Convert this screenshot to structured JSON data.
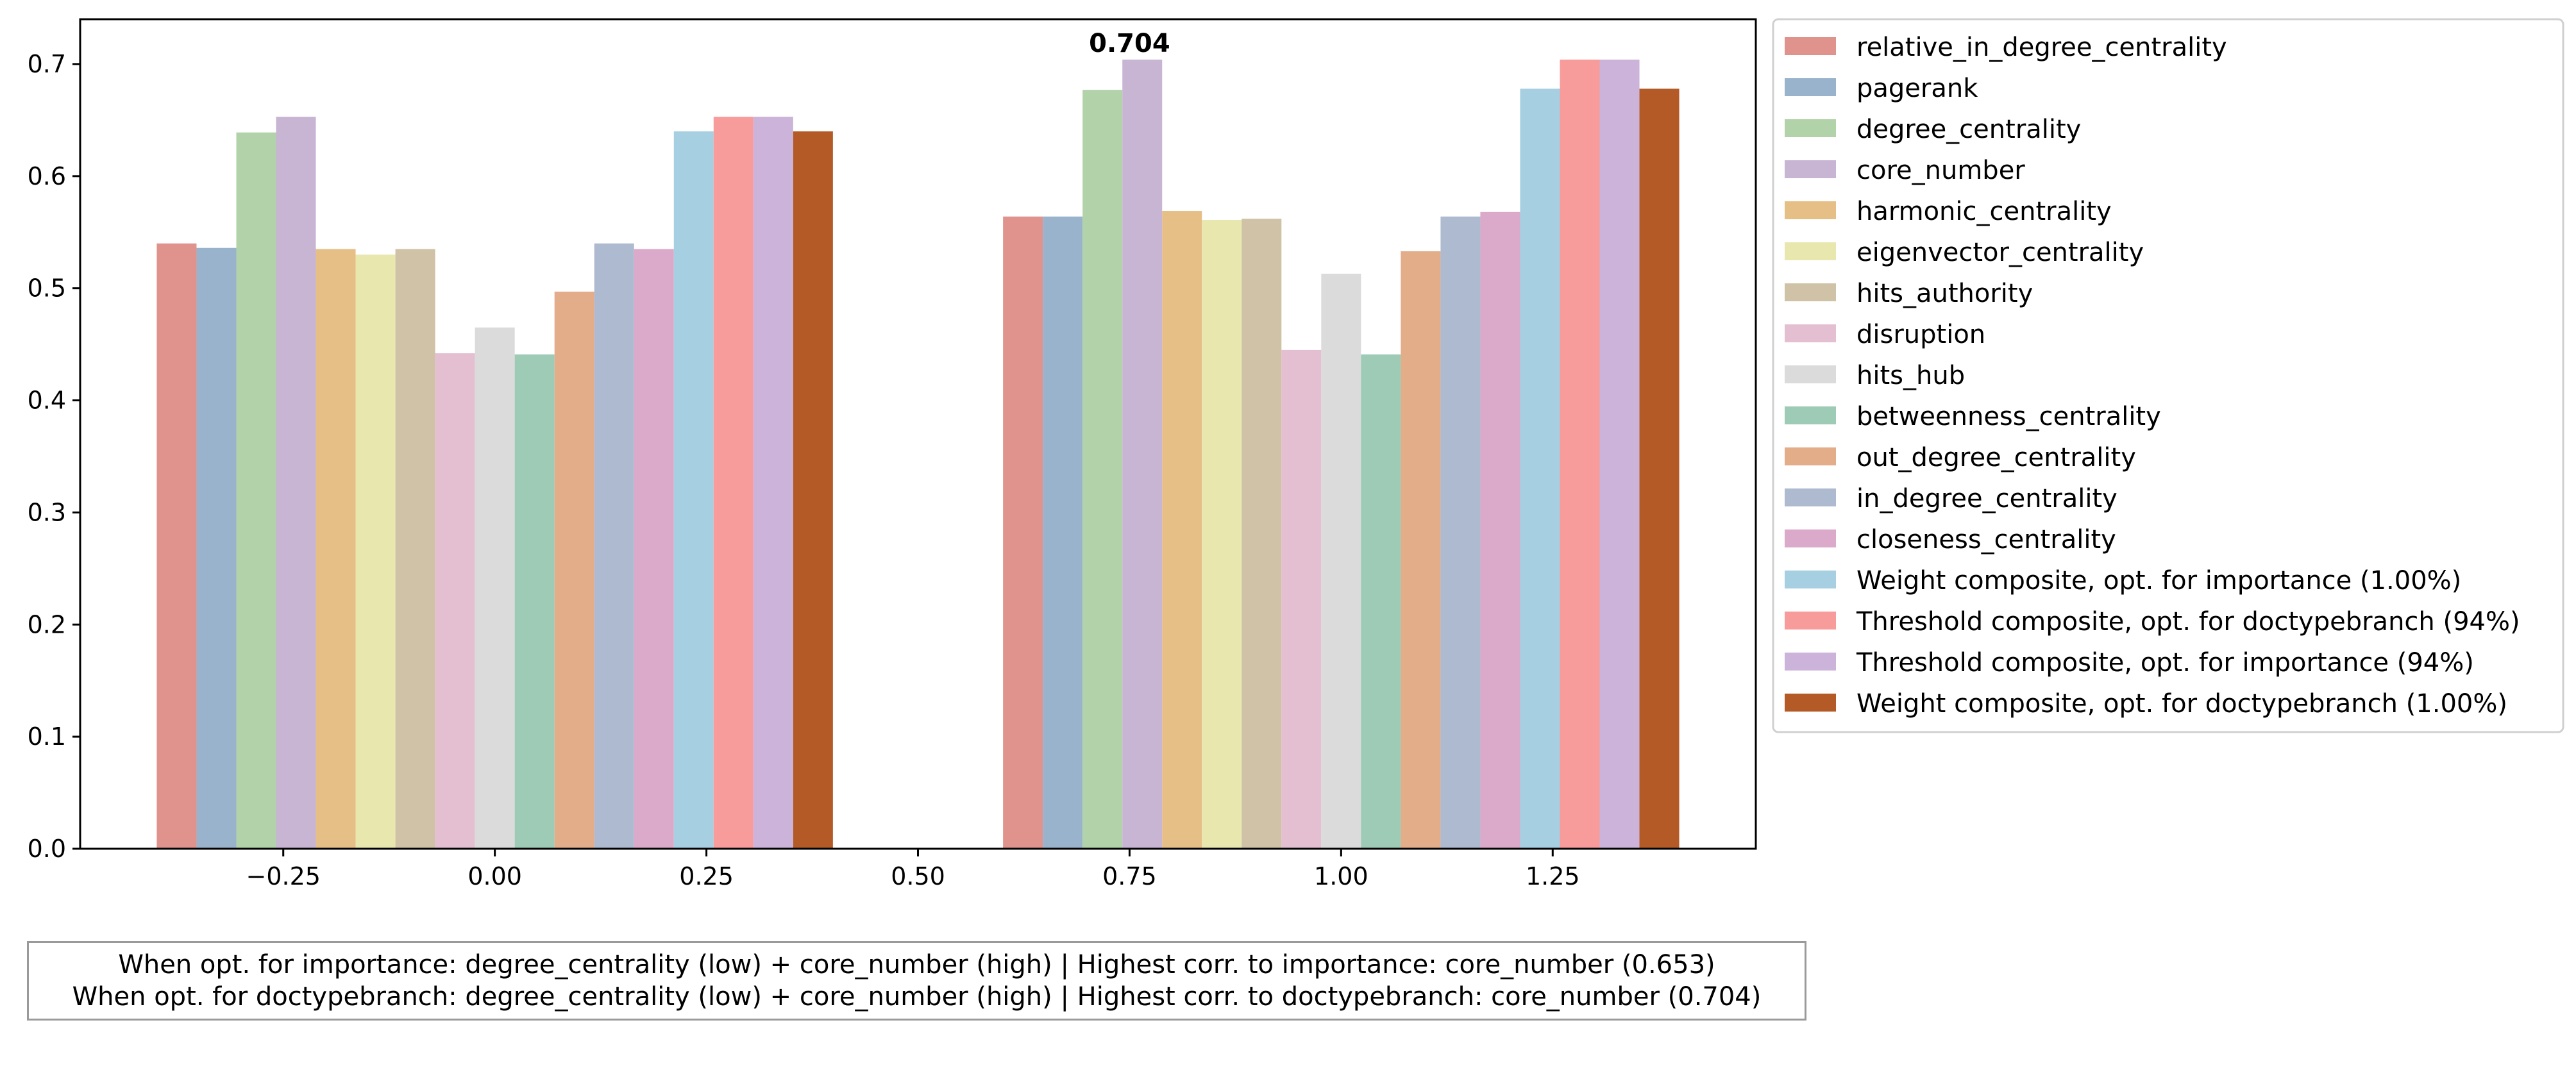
{
  "chart_data": {
    "type": "bar",
    "title": "",
    "xlabel": "",
    "ylabel": "",
    "xlim": [
      -0.49,
      1.49
    ],
    "ylim": [
      0,
      0.74
    ],
    "xticks": [
      -0.25,
      0.0,
      0.25,
      0.5,
      0.75,
      1.0,
      1.25
    ],
    "xtick_labels": [
      "−0.25",
      "0.00",
      "0.25",
      "0.50",
      "0.75",
      "1.00",
      "1.25"
    ],
    "yticks": [
      0.0,
      0.1,
      0.2,
      0.3,
      0.4,
      0.5,
      0.6,
      0.7
    ],
    "ytick_labels": [
      "0.0",
      "0.1",
      "0.2",
      "0.3",
      "0.4",
      "0.5",
      "0.6",
      "0.7"
    ],
    "group_centers": [
      0,
      1
    ],
    "bar_width": 0.047,
    "grid": false,
    "legend_placement": "outside right",
    "series": [
      {
        "name": "relative_in_degree_centrality",
        "color": "#e0928c",
        "values": [
          0.54,
          0.564
        ]
      },
      {
        "name": "pagerank",
        "color": "#9ab3cc",
        "values": [
          0.536,
          0.564
        ]
      },
      {
        "name": "degree_centrality",
        "color": "#b2d3a9",
        "values": [
          0.639,
          0.677
        ]
      },
      {
        "name": "core_number",
        "color": "#c8b4d3",
        "values": [
          0.653,
          0.704
        ]
      },
      {
        "name": "harmonic_centrality",
        "color": "#e6bf87",
        "values": [
          0.535,
          0.569
        ]
      },
      {
        "name": "eigenvector_centrality",
        "color": "#e8e7ae",
        "values": [
          0.53,
          0.561
        ]
      },
      {
        "name": "hits_authority",
        "color": "#d0c2a6",
        "values": [
          0.535,
          0.562
        ]
      },
      {
        "name": "disruption",
        "color": "#e4bfd1",
        "values": [
          0.442,
          0.445
        ]
      },
      {
        "name": "hits_hub",
        "color": "#dbdbdb",
        "values": [
          0.465,
          0.513
        ]
      },
      {
        "name": "betweenness_centrality",
        "color": "#9dcbb5",
        "values": [
          0.441,
          0.441
        ]
      },
      {
        "name": "out_degree_centrality",
        "color": "#e4ad8a",
        "values": [
          0.497,
          0.533
        ]
      },
      {
        "name": "in_degree_centrality",
        "color": "#aebad0",
        "values": [
          0.54,
          0.564
        ]
      },
      {
        "name": "closeness_centrality",
        "color": "#dba9c9",
        "values": [
          0.535,
          0.568
        ]
      },
      {
        "name": "Weight composite, opt. for importance (1.00%)",
        "color": "#a7cfe2",
        "values": [
          0.64,
          0.678
        ]
      },
      {
        "name": "Threshold composite, opt. for doctypebranch (94%)",
        "color": "#f89b9b",
        "values": [
          0.653,
          0.704
        ]
      },
      {
        "name": "Threshold composite, opt. for importance (94%)",
        "color": "#ccb3d9",
        "values": [
          0.653,
          0.704
        ]
      },
      {
        "name": "Weight composite, opt. for doctypebranch (1.00%)",
        "color": "#b35a27",
        "values": [
          0.64,
          0.678
        ]
      }
    ],
    "annotations": [
      {
        "text": "0.704",
        "x": 0.75,
        "y": 0.704
      }
    ],
    "footnote": [
      "When opt. for importance: degree_centrality (low) + core_number (high) | Highest corr. to importance: core_number (0.653)",
      "When opt. for doctypebranch: degree_centrality (low) + core_number (high) | Highest corr. to doctypebranch: core_number (0.704)"
    ]
  }
}
